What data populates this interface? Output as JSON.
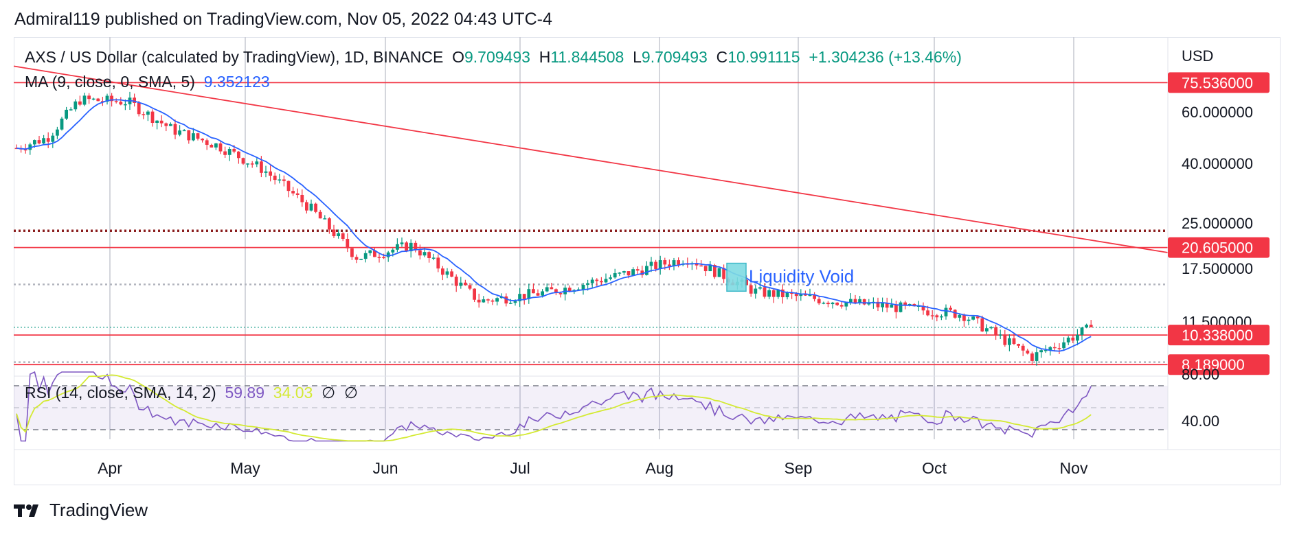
{
  "header": {
    "publisher": "Admiral119 published on TradingView.com, Nov 05, 2022 04:43 UTC-4"
  },
  "legend": {
    "symbol": "AXS / US Dollar (calculated by TradingView), 1D, BINANCE",
    "o_label": "O",
    "o_value": "9.709493",
    "h_label": "H",
    "h_value": "11.844508",
    "l_label": "L",
    "l_value": "9.709493",
    "c_label": "C",
    "c_value": "10.991115",
    "change": "+1.304236 (+13.46%)"
  },
  "ma_legend": {
    "label": "MA (9, close, 0, SMA, 5)",
    "value": "9.352123"
  },
  "rsi_legend": {
    "label": "RSI (14, close, SMA, 14, 2)",
    "value": "59.89",
    "sma_value": "34.03",
    "icons": [
      "empty-set-icon",
      "empty-set-icon"
    ]
  },
  "brand": {
    "name": "TradingView",
    "logo": "tradingview-logo"
  },
  "colors": {
    "up": "#089981",
    "down": "#f23645",
    "ma": "#2962ff",
    "rsi": "#7e57c2",
    "rsi_sma": "#d4ea33",
    "line": "#f23645"
  },
  "chart_data": {
    "type": "candlestick",
    "currency": "USD",
    "y_scale": "log",
    "ylim": [
      7.6,
      90
    ],
    "x_labels": [
      "Apr",
      "May",
      "Jun",
      "Jul",
      "Aug",
      "Sep",
      "Oct",
      "Nov"
    ],
    "y_tick_labels": [
      "60.000000",
      "40.000000",
      "25.000000",
      "17.500000",
      "11.500000"
    ],
    "price_tags": [
      "75.536000",
      "20.605000",
      "10.338000",
      "8.189000"
    ],
    "annotation": "Liquidity Void",
    "horizontal_lines": [
      {
        "price": 75.536,
        "style": "solid"
      },
      {
        "price": 20.605,
        "style": "solid"
      },
      {
        "price": 10.338,
        "style": "solid"
      },
      {
        "price": 8.189,
        "style": "solid"
      },
      {
        "price": 23.5,
        "style": "dotted"
      },
      {
        "price": 15.4,
        "style": "dotted"
      },
      {
        "price": 8.35,
        "style": "dotted"
      },
      {
        "price": 10.99,
        "style": "dotted"
      }
    ],
    "series_anchors": [
      {
        "month": "Mar",
        "price": 45
      },
      {
        "month": "Mar",
        "price": 49
      },
      {
        "month": "Mar",
        "price": 66
      },
      {
        "month": "Apr",
        "price": 65
      },
      {
        "month": "Apr",
        "price": 52
      },
      {
        "month": "Apr",
        "price": 46
      },
      {
        "month": "May",
        "price": 38
      },
      {
        "month": "May",
        "price": 28
      },
      {
        "month": "May",
        "price": 19
      },
      {
        "month": "Jun",
        "price": 21
      },
      {
        "month": "Jun",
        "price": 13.5
      },
      {
        "month": "Jul",
        "price": 14.5
      },
      {
        "month": "Jul",
        "price": 16.5
      },
      {
        "month": "Aug",
        "price": 19
      },
      {
        "month": "Aug",
        "price": 14.5
      },
      {
        "month": "Sep",
        "price": 13.3
      },
      {
        "month": "Oct",
        "price": 12.2
      },
      {
        "month": "Oct",
        "price": 8.7
      },
      {
        "month": "Nov",
        "price": 10.99
      }
    ],
    "rsi": {
      "levels": [
        "40.00"
      ],
      "upper_tick": "80.00"
    }
  }
}
